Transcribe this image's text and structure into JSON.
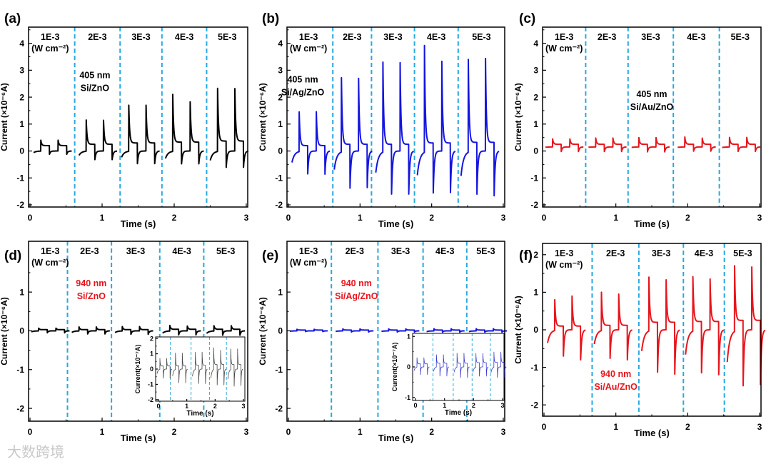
{
  "watermark": "大数跨境",
  "colors": {
    "dash": "#29a8e0",
    "black": "#000000",
    "blue": "#1414e0",
    "red": "#e8141c"
  },
  "chart_data": [
    {
      "panel": "(a)",
      "type": "line",
      "color": "#000000",
      "xlabel": "Time (s)",
      "ylabel": "Current (×10⁻⁶A)",
      "xlim": [
        -0.02,
        3.02
      ],
      "ylim": [
        -2.08,
        4.6
      ],
      "xticks": [
        "0",
        "1",
        "2",
        "3"
      ],
      "yticks": [
        "-2",
        "-1",
        "0",
        "1",
        "2",
        "3",
        "4"
      ],
      "dividers": [
        0.62,
        1.25,
        1.83,
        2.45
      ],
      "segment_labels": [
        "1E-3",
        "2E-3",
        "3E-3",
        "4E-3",
        "5E-3"
      ],
      "unit_label": "(W cm⁻²)",
      "annotation": [
        "405 nm",
        "Si/ZnO"
      ],
      "annotation_color": "#000000",
      "segments": [
        {
          "start": 0.05,
          "peaks": [
            0.4,
            0.4
          ],
          "negs": [
            -0.12,
            -0.12
          ],
          "plateau": 0.2
        },
        {
          "start": 0.68,
          "peaks": [
            1.15,
            1.14
          ],
          "negs": [
            -0.32,
            -0.32
          ],
          "plateau": 0.25
        },
        {
          "start": 1.27,
          "peaks": [
            1.7,
            1.7
          ],
          "negs": [
            -0.47,
            -0.47
          ],
          "plateau": 0.3
        },
        {
          "start": 1.88,
          "peaks": [
            2.1,
            2.1
          ],
          "negs": [
            -0.55,
            -0.55
          ],
          "plateau": 0.33
        },
        {
          "start": 2.5,
          "peaks": [
            2.68,
            2.67
          ],
          "negs": [
            -0.7,
            -0.7
          ],
          "plateau": 0.37
        }
      ]
    },
    {
      "panel": "(b)",
      "type": "line",
      "color": "#1414e0",
      "xlabel": "Time (s)",
      "ylabel": "Current (×10⁻⁶A)",
      "xlim": [
        -0.02,
        3.02
      ],
      "ylim": [
        -2.08,
        4.6
      ],
      "xticks": [
        "0",
        "1",
        "2",
        "3"
      ],
      "yticks": [
        "-2",
        "-1",
        "0",
        "1",
        "2",
        "3",
        "4"
      ],
      "dividers": [
        0.62,
        1.16,
        1.76,
        2.37
      ],
      "segment_labels": [
        "1E-3",
        "2E-3",
        "3E-3",
        "4E-3",
        "5E-3"
      ],
      "unit_label": "(W cm⁻²)",
      "annotation": [
        "405 nm",
        "Si/Ag/ZnO"
      ],
      "annotation_color": "#000000",
      "segments": [
        {
          "start": 0.05,
          "peaks": [
            1.45,
            1.46
          ],
          "negs": [
            -0.85,
            -0.86
          ],
          "plateau": 0.2
        },
        {
          "start": 0.64,
          "peaks": [
            2.72,
            2.7
          ],
          "negs": [
            -1.38,
            -1.36
          ],
          "plateau": 0.25
        },
        {
          "start": 1.22,
          "peaks": [
            3.3,
            3.28
          ],
          "negs": [
            -1.6,
            -1.6
          ],
          "plateau": 0.25
        },
        {
          "start": 1.8,
          "peaks": [
            3.92,
            3.88
          ],
          "negs": [
            -1.8,
            -1.78
          ],
          "plateau": 0.3
        },
        {
          "start": 2.41,
          "peaks": [
            3.96,
            4.0
          ],
          "negs": [
            -1.85,
            -1.92
          ],
          "plateau": 0.32
        }
      ]
    },
    {
      "panel": "(c)",
      "type": "line",
      "color": "#e8141c",
      "xlabel": "Time (s)",
      "ylabel": "Current (×10⁻⁶A)",
      "xlim": [
        -0.02,
        3.02
      ],
      "ylim": [
        -2.08,
        4.6
      ],
      "xticks": [
        "0",
        "1",
        "2",
        "3"
      ],
      "yticks": [
        "-2",
        "-1",
        "0",
        "1",
        "2",
        "3",
        "4"
      ],
      "dividers": [
        0.58,
        1.17,
        1.8,
        2.44
      ],
      "segment_labels": [
        "1E-3",
        "2E-3",
        "3E-3",
        "4E-3",
        "5E-3"
      ],
      "unit_label": "(W cm⁻²)",
      "annotation": [
        "405 nm",
        "Si/Au/ZnO"
      ],
      "annotation_color": "#000000",
      "segments": [
        {
          "start": 0.02,
          "peaks": [
            0.45,
            0.45
          ],
          "negs": [
            -0.02,
            -0.02
          ],
          "plateau": 0.25,
          "base": 0.15
        },
        {
          "start": 0.62,
          "peaks": [
            0.48,
            0.48
          ],
          "negs": [
            -0.02,
            -0.02
          ],
          "plateau": 0.25,
          "base": 0.15
        },
        {
          "start": 1.22,
          "peaks": [
            0.5,
            0.5
          ],
          "negs": [
            -0.03,
            -0.03
          ],
          "plateau": 0.25,
          "base": 0.15
        },
        {
          "start": 1.86,
          "peaks": [
            0.52,
            0.52
          ],
          "negs": [
            -0.03,
            -0.03
          ],
          "plateau": 0.25,
          "base": 0.15
        },
        {
          "start": 2.48,
          "peaks": [
            0.55,
            0.55
          ],
          "negs": [
            -0.04,
            -0.04
          ],
          "plateau": 0.25,
          "base": 0.15
        }
      ]
    },
    {
      "panel": "(d)",
      "type": "line",
      "color": "#000000",
      "xlabel": "Time (s)",
      "ylabel": "Current (×10⁻⁶A)",
      "xlim": [
        -0.02,
        3.02
      ],
      "ylim": [
        -2.33,
        2.31
      ],
      "xticks": [
        "0",
        "1",
        "2",
        "3"
      ],
      "yticks": [
        "-2",
        "-1",
        "0",
        "1"
      ],
      "dividers": [
        0.52,
        1.13,
        1.8,
        2.41
      ],
      "segment_labels": [
        "1E-3",
        "2E-3",
        "3E-3",
        "4E-3",
        "5E-3"
      ],
      "unit_label": "(W cm⁻²)",
      "annotation": [
        "940 nm",
        "Si/ZnO"
      ],
      "annotation_color": "#e8141c",
      "segments": [
        {
          "start": 0.02,
          "peaks": [
            0.07,
            0.07
          ],
          "negs": [
            -0.05,
            -0.05
          ],
          "plateau": 0.03
        },
        {
          "start": 0.58,
          "peaks": [
            0.1,
            0.1
          ],
          "negs": [
            -0.08,
            -0.08
          ],
          "plateau": 0.03
        },
        {
          "start": 1.18,
          "peaks": [
            0.11,
            0.11
          ],
          "negs": [
            -0.09,
            -0.09
          ],
          "plateau": 0.03
        },
        {
          "start": 1.84,
          "peaks": [
            0.14,
            0.14
          ],
          "negs": [
            -0.12,
            -0.12
          ],
          "plateau": 0.04
        },
        {
          "start": 2.45,
          "peaks": [
            0.15,
            0.15
          ],
          "negs": [
            -0.13,
            -0.13
          ],
          "plateau": 0.04
        }
      ],
      "inset": {
        "xlabel": "Time (s)",
        "ylabel": "Current(×10⁻⁷A)",
        "xlim": [
          -0.1,
          3.05
        ],
        "ylim": [
          -2.1,
          2.1
        ],
        "xticks": [
          "0",
          "1",
          "2",
          "3"
        ],
        "yticks": [
          "-2",
          "-1",
          "0",
          "1",
          "2"
        ],
        "dividers": [
          0.42,
          1.15,
          1.8,
          2.4
        ],
        "color": "#444444",
        "segments": [
          {
            "start": -0.05,
            "peaks": [
              0.7,
              0.7
            ],
            "negs": [
              -0.6,
              -0.6
            ],
            "plateau": 0.2
          },
          {
            "start": 0.5,
            "peaks": [
              1.05,
              1.05
            ],
            "negs": [
              -0.9,
              -0.9
            ],
            "plateau": 0.2
          },
          {
            "start": 1.2,
            "peaks": [
              1.1,
              1.1
            ],
            "negs": [
              -0.95,
              -0.95
            ],
            "plateau": 0.25
          },
          {
            "start": 1.85,
            "peaks": [
              1.4,
              1.4
            ],
            "negs": [
              -1.2,
              -1.2
            ],
            "plateau": 0.3
          },
          {
            "start": 2.45,
            "peaks": [
              1.5,
              1.5
            ],
            "negs": [
              -1.3,
              -1.25
            ],
            "plateau": 0.3
          }
        ]
      }
    },
    {
      "panel": "(e)",
      "type": "line",
      "color": "#1414e0",
      "xlabel": "Time (s)",
      "ylabel": "Current (×10⁻⁶A)",
      "xlim": [
        -0.02,
        3.02
      ],
      "ylim": [
        -2.33,
        2.31
      ],
      "xticks": [
        "0",
        "1",
        "2",
        "3"
      ],
      "yticks": [
        "-2",
        "-1",
        "0",
        "1"
      ],
      "dividers": [
        0.6,
        1.25,
        1.88,
        2.49
      ],
      "segment_labels": [
        "1E-3",
        "2E-3",
        "3E-3",
        "4E-3",
        "5E-3"
      ],
      "unit_label": "(W cm⁻²)",
      "annotation": [
        "940 nm",
        "Si/Ag/ZnO"
      ],
      "annotation_color": "#e8141c",
      "segments": [
        {
          "start": 0.02,
          "peaks": [
            0.04,
            0.04
          ],
          "negs": [
            -0.02,
            -0.02
          ],
          "plateau": 0.02
        },
        {
          "start": 0.66,
          "peaks": [
            0.05,
            0.05
          ],
          "negs": [
            -0.03,
            -0.03
          ],
          "plateau": 0.02
        },
        {
          "start": 1.3,
          "peaks": [
            0.05,
            0.05
          ],
          "negs": [
            -0.03,
            -0.03
          ],
          "plateau": 0.02
        },
        {
          "start": 1.93,
          "peaks": [
            0.06,
            0.06
          ],
          "negs": [
            -0.04,
            -0.04
          ],
          "plateau": 0.02
        },
        {
          "start": 2.52,
          "peaks": [
            0.06,
            0.06
          ],
          "negs": [
            -0.04,
            -0.04
          ],
          "plateau": 0.02
        }
      ],
      "inset": {
        "xlabel": "Time (s)",
        "ylabel": "Current(×10⁻⁷A)",
        "xlim": [
          -0.1,
          3.05
        ],
        "ylim": [
          -1.1,
          1.1
        ],
        "xticks": [
          "0",
          "1",
          "2",
          "3"
        ],
        "yticks": [
          "-1",
          "0",
          "1"
        ],
        "dividers": [
          0.6,
          1.3,
          1.95,
          2.58
        ],
        "color": "#3a3ad0",
        "segments": [
          {
            "start": -0.05,
            "peaks": [
              0.3,
              0.3
            ],
            "negs": [
              -0.25,
              -0.25
            ],
            "plateau": 0.1
          },
          {
            "start": 0.62,
            "peaks": [
              0.4,
              0.4
            ],
            "negs": [
              -0.3,
              -0.3
            ],
            "plateau": 0.12
          },
          {
            "start": 1.33,
            "peaks": [
              0.45,
              0.45
            ],
            "negs": [
              -0.35,
              -0.35
            ],
            "plateau": 0.12
          },
          {
            "start": 1.98,
            "peaks": [
              0.5,
              0.5
            ],
            "negs": [
              -0.35,
              -0.35
            ],
            "plateau": 0.14
          },
          {
            "start": 2.6,
            "peaks": [
              0.55,
              0.55
            ],
            "negs": [
              -0.4,
              -0.4
            ],
            "plateau": 0.15
          }
        ]
      }
    },
    {
      "panel": "(f)",
      "type": "line",
      "color": "#e8141c",
      "xlabel": "Time (s)",
      "ylabel": "Current (×10⁻⁶A)",
      "xlim": [
        -0.02,
        3.02
      ],
      "ylim": [
        -2.3,
        2.3
      ],
      "xticks": [
        "0",
        "1",
        "2",
        "3"
      ],
      "yticks": [
        "-2",
        "-1",
        "0",
        "1",
        "2"
      ],
      "dividers": [
        0.67,
        1.32,
        1.94,
        2.51
      ],
      "segment_labels": [
        "1E-3",
        "2E-3",
        "3E-3",
        "4E-3",
        "5E-3"
      ],
      "unit_label": "(W cm⁻²)",
      "annotation": [
        "940 nm",
        "Si/Au/ZnO"
      ],
      "annotation_color": "#e8141c",
      "segments": [
        {
          "start": 0.05,
          "peaks": [
            0.8,
            0.9
          ],
          "negs": [
            -0.7,
            -0.8
          ],
          "plateau": 0.1
        },
        {
          "start": 0.7,
          "peaks": [
            1.0,
            0.95
          ],
          "negs": [
            -0.76,
            -0.8
          ],
          "plateau": 0.12
        },
        {
          "start": 1.36,
          "peaks": [
            1.4,
            1.33
          ],
          "negs": [
            -1.13,
            -1.18
          ],
          "plateau": 0.2
        },
        {
          "start": 1.97,
          "peaks": [
            1.63,
            1.56
          ],
          "negs": [
            -1.32,
            -1.38
          ],
          "plateau": 0.22
        },
        {
          "start": 2.55,
          "peaks": [
            1.97,
            1.93
          ],
          "negs": [
            -1.72,
            -1.68
          ],
          "plateau": 0.25
        }
      ]
    }
  ]
}
